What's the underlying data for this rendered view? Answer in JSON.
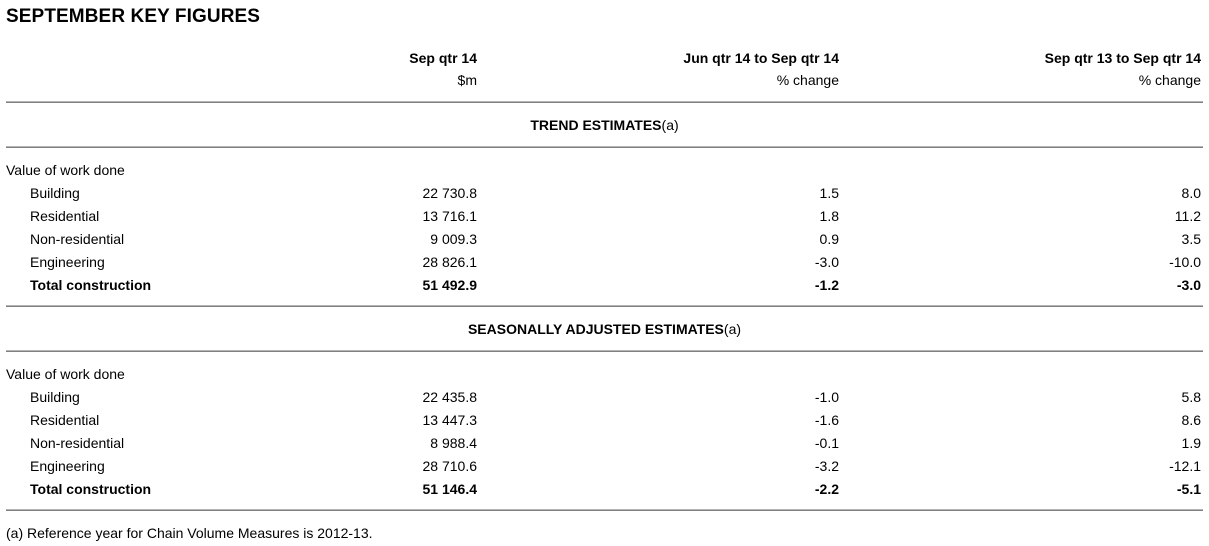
{
  "title": "SEPTEMBER KEY FIGURES",
  "columns": [
    {
      "heading": "Sep qtr 14",
      "unit": "$m"
    },
    {
      "heading": "Jun qtr 14 to Sep qtr 14",
      "unit": "% change"
    },
    {
      "heading": "Sep qtr 13 to Sep qtr 14",
      "unit": "% change"
    }
  ],
  "sections": [
    {
      "title": "TREND ESTIMATES",
      "note": "(a)",
      "group_label": "Value of work done",
      "rows": [
        {
          "label": "Building",
          "values": [
            "22 730.8",
            "1.5",
            "8.0"
          ]
        },
        {
          "label": "Residential",
          "values": [
            "13 716.1",
            "1.8",
            "11.2"
          ]
        },
        {
          "label": "Non-residential",
          "values": [
            "9 009.3",
            "0.9",
            "3.5"
          ]
        },
        {
          "label": "Engineering",
          "values": [
            "28 826.1",
            "-3.0",
            "-10.0"
          ]
        },
        {
          "label": "Total construction",
          "values": [
            "51 492.9",
            "-1.2",
            "-3.0"
          ]
        }
      ]
    },
    {
      "title": "SEASONALLY ADJUSTED ESTIMATES",
      "note": "(a)",
      "group_label": "Value of work done",
      "rows": [
        {
          "label": "Building",
          "values": [
            "22 435.8",
            "-1.0",
            "5.8"
          ]
        },
        {
          "label": "Residential",
          "values": [
            "13 447.3",
            "-1.6",
            "8.6"
          ]
        },
        {
          "label": "Non-residential",
          "values": [
            "8 988.4",
            "-0.1",
            "1.9"
          ]
        },
        {
          "label": "Engineering",
          "values": [
            "28 710.6",
            "-3.2",
            "-12.1"
          ]
        },
        {
          "label": "Total construction",
          "values": [
            "51 146.4",
            "-2.2",
            "-5.1"
          ]
        }
      ]
    }
  ],
  "footnote": "(a) Reference year for Chain Volume Measures is 2012-13."
}
